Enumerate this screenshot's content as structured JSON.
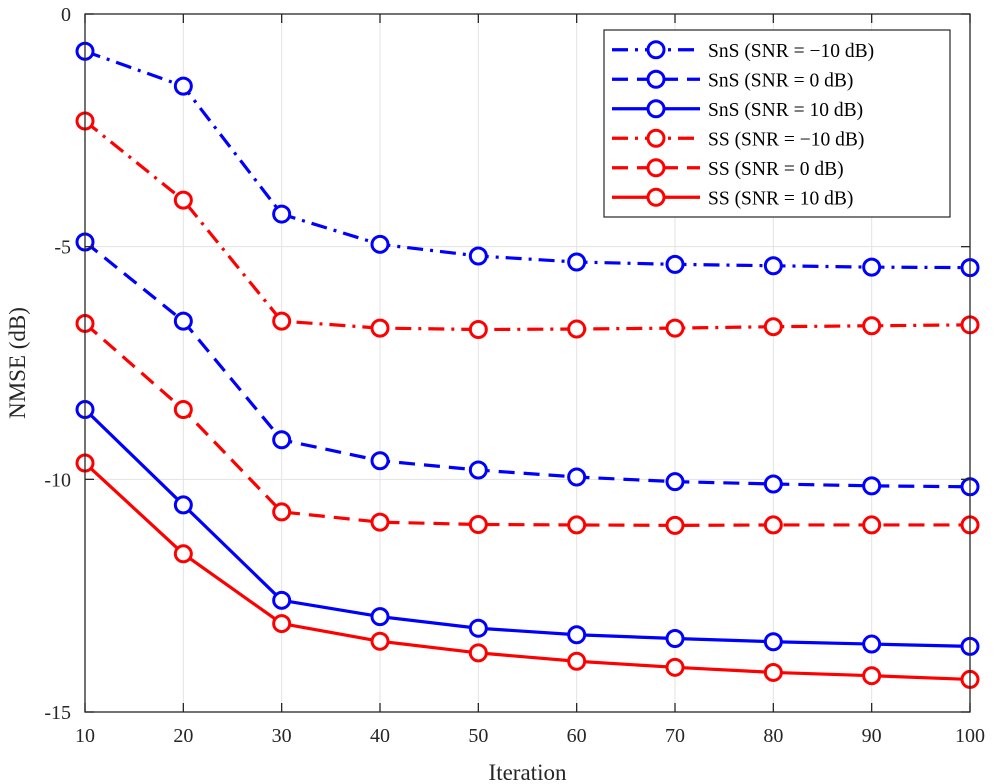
{
  "chart_data": {
    "type": "line",
    "title": "",
    "xlabel": "Iteration",
    "ylabel": "NMSE (dB)",
    "xlim": [
      10,
      100
    ],
    "ylim": [
      -15,
      0
    ],
    "x_ticks": [
      "10",
      "20",
      "30",
      "40",
      "50",
      "60",
      "70",
      "80",
      "90",
      "100"
    ],
    "y_ticks": [
      "0",
      "-5",
      "-10",
      "-15"
    ],
    "grid": true,
    "legend_position": "top-right",
    "marker": "circle",
    "x": [
      10,
      20,
      30,
      40,
      50,
      60,
      70,
      80,
      90,
      100
    ],
    "series": [
      {
        "name": "SnS (SNR = −10 dB)",
        "color": "#0000ff",
        "line_style": "dash-dot",
        "values": [
          -0.8,
          -1.55,
          -4.3,
          -4.95,
          -5.2,
          -5.33,
          -5.38,
          -5.41,
          -5.44,
          -5.45
        ]
      },
      {
        "name": "SnS (SNR = 0 dB)",
        "color": "#0000ff",
        "line_style": "dashed",
        "values": [
          -4.9,
          -6.6,
          -9.15,
          -9.6,
          -9.8,
          -9.95,
          -10.05,
          -10.1,
          -10.14,
          -10.16
        ]
      },
      {
        "name": "SnS (SNR = 10 dB)",
        "color": "#0000ff",
        "line_style": "solid",
        "values": [
          -8.5,
          -10.55,
          -12.6,
          -12.95,
          -13.2,
          -13.34,
          -13.42,
          -13.49,
          -13.54,
          -13.59
        ]
      },
      {
        "name": "SS (SNR = −10 dB)",
        "color": "#ff0000",
        "line_style": "dash-dot",
        "values": [
          -2.3,
          -4.0,
          -6.6,
          -6.75,
          -6.78,
          -6.77,
          -6.75,
          -6.72,
          -6.7,
          -6.68
        ]
      },
      {
        "name": "SS (SNR = 0 dB)",
        "color": "#ff0000",
        "line_style": "dashed",
        "values": [
          -6.65,
          -8.5,
          -10.7,
          -10.92,
          -10.97,
          -10.98,
          -10.99,
          -10.98,
          -10.98,
          -10.98
        ]
      },
      {
        "name": "SS (SNR = 10 dB)",
        "color": "#ff0000",
        "line_style": "solid",
        "values": [
          -9.65,
          -11.6,
          -13.1,
          -13.48,
          -13.73,
          -13.91,
          -14.04,
          -14.15,
          -14.22,
          -14.3
        ]
      }
    ]
  }
}
